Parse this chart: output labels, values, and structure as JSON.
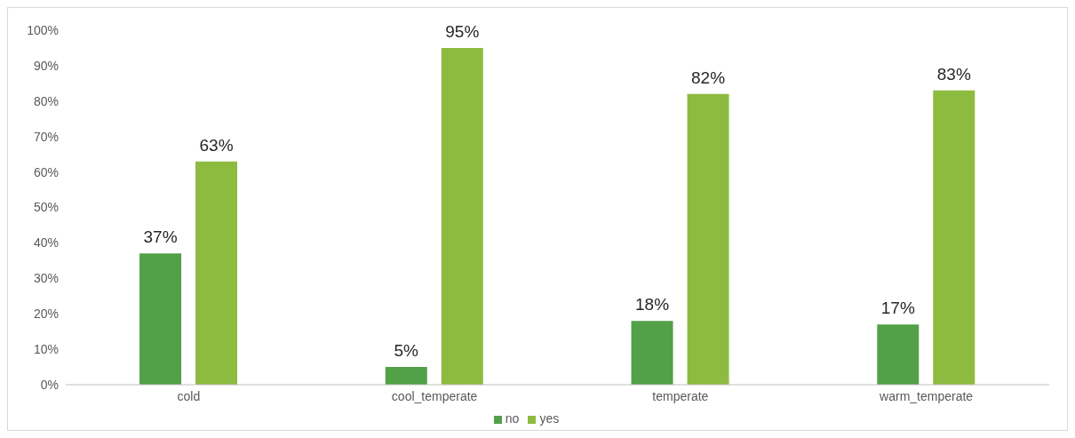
{
  "chart_data": {
    "type": "bar",
    "categories": [
      "cold",
      "cool_temperate",
      "temperate",
      "warm_temperate"
    ],
    "series": [
      {
        "name": "no",
        "color": "#52a047",
        "values": [
          37,
          5,
          18,
          17
        ],
        "value_labels": [
          "37%",
          "5%",
          "18%",
          "17%"
        ]
      },
      {
        "name": "yes",
        "color": "#8dbb40",
        "values": [
          63,
          95,
          82,
          83
        ],
        "value_labels": [
          "63%",
          "95%",
          "82%",
          "83%"
        ]
      }
    ],
    "ylim": [
      0,
      100
    ],
    "yticks": [
      {
        "value": 0,
        "label": "0%"
      },
      {
        "value": 10,
        "label": "10%"
      },
      {
        "value": 20,
        "label": "20%"
      },
      {
        "value": 30,
        "label": "30%"
      },
      {
        "value": 40,
        "label": "40%"
      },
      {
        "value": 50,
        "label": "50%"
      },
      {
        "value": 60,
        "label": "60%"
      },
      {
        "value": 70,
        "label": "70%"
      },
      {
        "value": 80,
        "label": "80%"
      },
      {
        "value": 90,
        "label": "90%"
      },
      {
        "value": 100,
        "label": "100%"
      }
    ],
    "grid": false,
    "legend": "bottom"
  }
}
